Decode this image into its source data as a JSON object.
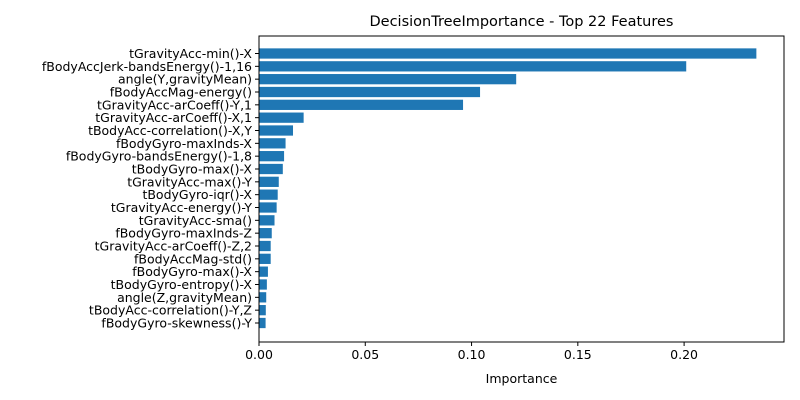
{
  "chart_data": {
    "type": "bar",
    "orientation": "horizontal",
    "title": "DecisionTreeImportance - Top 22 Features",
    "xlabel": "Importance",
    "ylabel": "",
    "xlim": [
      0,
      0.247
    ],
    "xticks": [
      0.0,
      0.05,
      0.1,
      0.15,
      0.2
    ],
    "xtick_labels": [
      "0.00",
      "0.05",
      "0.10",
      "0.15",
      "0.20"
    ],
    "grid": false,
    "bar_color": "#1f77b4",
    "categories": [
      "tGravityAcc-min()-X",
      "fBodyAccJerk-bandsEnergy()-1,16",
      "angle(Y,gravityMean)",
      "fBodyAccMag-energy()",
      "tGravityAcc-arCoeff()-Y,1",
      "tGravityAcc-arCoeff()-X,1",
      "tBodyAcc-correlation()-X,Y",
      "fBodyGyro-maxInds-X",
      "fBodyGyro-bandsEnergy()-1,8",
      "tBodyGyro-max()-X",
      "tGravityAcc-max()-Y",
      "tBodyGyro-iqr()-X",
      "tGravityAcc-energy()-Y",
      "tGravityAcc-sma()",
      "fBodyGyro-maxInds-Z",
      "tGravityAcc-arCoeff()-Z,2",
      "fBodyAccMag-std()",
      "fBodyGyro-max()-X",
      "tBodyGyro-entropy()-X",
      "angle(Z,gravityMean)",
      "tBodyAcc-correlation()-Y,Z",
      "fBodyGyro-skewness()-Y"
    ],
    "values": [
      0.234,
      0.201,
      0.121,
      0.104,
      0.096,
      0.021,
      0.016,
      0.0125,
      0.0118,
      0.0112,
      0.0093,
      0.0088,
      0.0083,
      0.0073,
      0.006,
      0.0055,
      0.0055,
      0.0042,
      0.0037,
      0.0034,
      0.0032,
      0.0031
    ]
  }
}
